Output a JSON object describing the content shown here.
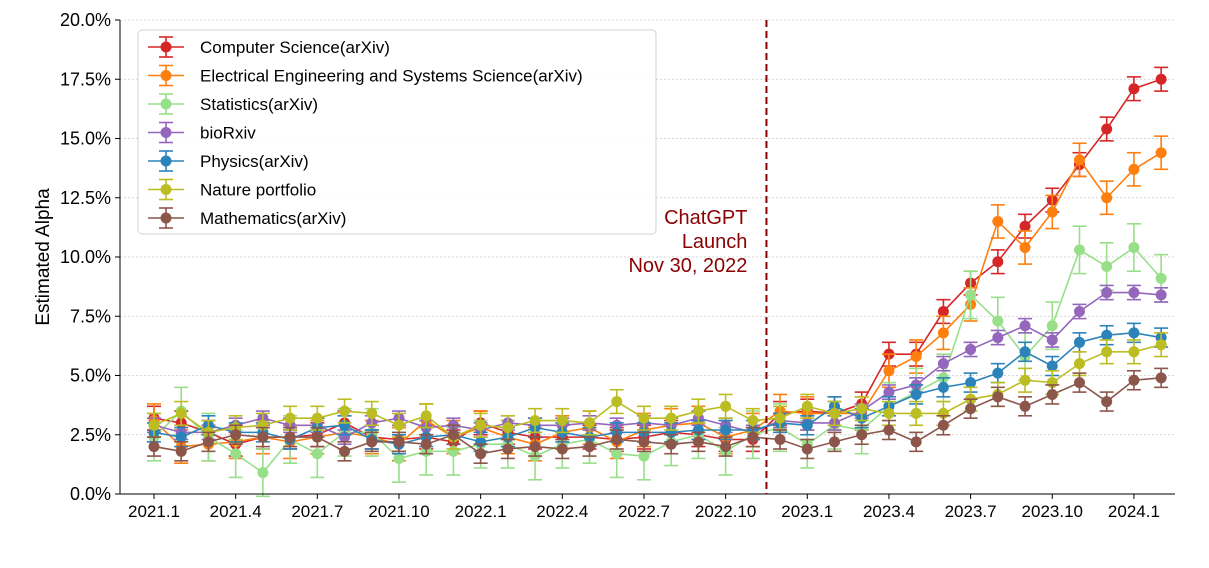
{
  "chart_data": {
    "type": "line",
    "title": "",
    "xlabel": "",
    "ylabel": "Estimated Alpha",
    "ylim": [
      0,
      20
    ],
    "y_ticks": [
      "0.0%",
      "2.5%",
      "5.0%",
      "7.5%",
      "10.0%",
      "12.5%",
      "15.0%",
      "17.5%",
      "20.0%"
    ],
    "y_tick_values": [
      0,
      2.5,
      5,
      7.5,
      10,
      12.5,
      15,
      17.5,
      20
    ],
    "y_unit": "percent",
    "grid": "horizontal dotted",
    "legend_placement": "top-left",
    "x": [
      "2021.1",
      "2021.2",
      "2021.3",
      "2021.4",
      "2021.5",
      "2021.6",
      "2021.7",
      "2021.8",
      "2021.9",
      "2021.10",
      "2021.11",
      "2021.12",
      "2022.1",
      "2022.2",
      "2022.3",
      "2022.4",
      "2022.5",
      "2022.6",
      "2022.7",
      "2022.8",
      "2022.9",
      "2022.10",
      "2022.11",
      "2022.12",
      "2023.1",
      "2023.2",
      "2023.3",
      "2023.4",
      "2023.5",
      "2023.6",
      "2023.7",
      "2023.8",
      "2023.9",
      "2023.10",
      "2023.11",
      "2023.12",
      "2024.1",
      "2024.2"
    ],
    "x_ticks": [
      "2021.1",
      "2021.4",
      "2021.7",
      "2021.10",
      "2022.1",
      "2022.4",
      "2022.7",
      "2022.10",
      "2023.1",
      "2023.4",
      "2023.7",
      "2023.10",
      "2024.1"
    ],
    "series": [
      {
        "name": "Computer Science(arXiv)",
        "color": "#d62728",
        "yerr": 0.5,
        "values": [
          3.2,
          3.0,
          2.6,
          2.1,
          2.4,
          2.4,
          2.5,
          3.0,
          2.4,
          2.3,
          2.4,
          2.2,
          3.0,
          2.6,
          2.4,
          2.4,
          2.4,
          2.3,
          2.4,
          2.6,
          2.5,
          2.3,
          2.3,
          3.4,
          3.5,
          3.4,
          3.8,
          5.9,
          5.9,
          7.7,
          8.9,
          9.8,
          11.3,
          12.4,
          13.9,
          15.4,
          17.1,
          17.5
        ]
      },
      {
        "name": "Electrical Engineering and Systems Science(arXiv)",
        "color": "#ff7f0e",
        "yerr": 0.7,
        "values": [
          3.1,
          2.0,
          2.1,
          2.2,
          2.4,
          2.2,
          2.4,
          2.6,
          2.4,
          2.1,
          3.1,
          2.4,
          2.8,
          2.4,
          2.1,
          2.6,
          2.8,
          2.2,
          2.7,
          2.9,
          3.0,
          2.4,
          2.7,
          3.5,
          3.4,
          3.4,
          3.4,
          5.2,
          5.8,
          6.8,
          8.0,
          11.5,
          10.4,
          11.9,
          14.1,
          12.5,
          13.7,
          14.4
        ]
      },
      {
        "name": "Statistics(arXiv)",
        "color": "#98df8a",
        "yerr": 1.0,
        "values": [
          2.4,
          3.5,
          2.4,
          1.7,
          0.9,
          2.3,
          1.7,
          2.6,
          2.6,
          1.5,
          1.8,
          1.8,
          2.1,
          2.1,
          1.6,
          2.1,
          2.3,
          1.7,
          1.6,
          2.2,
          2.5,
          1.8,
          2.5,
          2.8,
          2.1,
          2.9,
          2.7,
          3.7,
          4.3,
          4.9,
          8.4,
          7.3,
          5.8,
          7.1,
          10.3,
          9.6,
          10.4,
          9.1
        ]
      },
      {
        "name": "bioRxiv",
        "color": "#9467bd",
        "yerr": 0.3,
        "values": [
          2.9,
          2.6,
          2.6,
          2.9,
          3.2,
          2.9,
          2.9,
          2.4,
          3.0,
          3.2,
          2.8,
          2.9,
          2.7,
          3.0,
          2.9,
          2.9,
          3.0,
          2.9,
          3.0,
          2.9,
          3.2,
          2.9,
          2.6,
          3.1,
          3.0,
          3.0,
          3.5,
          4.3,
          4.6,
          5.5,
          6.1,
          6.6,
          7.1,
          6.5,
          7.7,
          8.5,
          8.5,
          8.4
        ]
      },
      {
        "name": "Physics(arXiv)",
        "color": "#2b83ba",
        "yerr": 0.4,
        "values": [
          2.6,
          2.4,
          2.9,
          2.6,
          2.6,
          2.3,
          2.8,
          2.9,
          2.3,
          2.1,
          2.4,
          2.5,
          2.2,
          2.4,
          2.8,
          2.6,
          2.4,
          2.6,
          2.6,
          2.6,
          2.7,
          2.7,
          2.7,
          3.0,
          2.9,
          3.7,
          3.2,
          3.7,
          4.2,
          4.5,
          4.7,
          5.1,
          6.0,
          5.4,
          6.4,
          6.7,
          6.8,
          6.6
        ]
      },
      {
        "name": "Nature portfolio",
        "color": "#bcbd22",
        "yerr": 0.5,
        "values": [
          2.9,
          3.4,
          2.6,
          2.8,
          2.9,
          3.2,
          3.2,
          3.5,
          3.4,
          2.9,
          3.3,
          2.4,
          2.9,
          2.8,
          3.1,
          3.1,
          3.0,
          3.9,
          3.2,
          3.2,
          3.5,
          3.7,
          3.1,
          3.2,
          3.7,
          3.4,
          3.6,
          3.4,
          3.4,
          3.4,
          4.0,
          4.2,
          4.8,
          4.7,
          5.5,
          6.0,
          6.0,
          6.3
        ]
      },
      {
        "name": "Mathematics(arXiv)",
        "color": "#8c564b",
        "yerr": 0.4,
        "values": [
          2.0,
          1.8,
          2.2,
          2.5,
          2.4,
          2.4,
          2.4,
          1.8,
          2.2,
          2.2,
          2.1,
          2.5,
          1.7,
          1.9,
          2.0,
          1.9,
          2.0,
          2.3,
          2.2,
          2.1,
          2.2,
          2.0,
          2.4,
          2.3,
          1.9,
          2.2,
          2.5,
          2.7,
          2.2,
          2.9,
          3.6,
          4.1,
          3.7,
          4.2,
          4.7,
          3.9,
          4.8,
          4.9
        ]
      }
    ],
    "annotation": {
      "lines": [
        "ChatGPT",
        "Launch",
        "Nov 30, 2022"
      ],
      "color": "#8b0000",
      "event_between": [
        "2022.11",
        "2022.12"
      ]
    }
  }
}
